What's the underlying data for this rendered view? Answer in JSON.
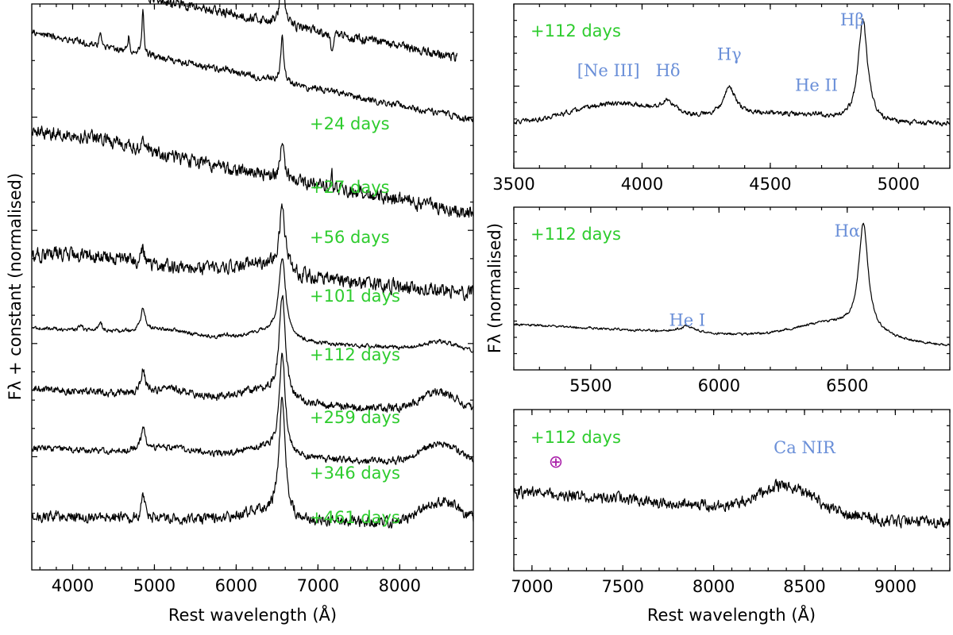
{
  "colors": {
    "epoch": "#2ecc2e",
    "line_id": "#6a8fd8",
    "telluric": "#aa22aa",
    "spectrum": "#000000"
  },
  "chart_data": [
    {
      "id": "left",
      "type": "line",
      "title": "",
      "xlabel": "Rest wavelength (Å)",
      "ylabel": "Fλ + constant (normalised)",
      "xlim": [
        3500,
        8900
      ],
      "ylim": [
        0,
        10
      ],
      "xticks": [
        4000,
        5000,
        6000,
        7000,
        8000
      ],
      "xtick_labels": [
        "4000",
        "5000",
        "6000",
        "7000",
        "8000"
      ],
      "grid": false,
      "series": [
        {
          "name": "+24 days",
          "label": "+24 days",
          "x_end": 8700,
          "offset": 9.6,
          "cont_start": 0.9,
          "cont_end": -0.6,
          "noise": 0.07,
          "lines": [
            [
              4340,
              0.1,
              30
            ],
            [
              4686,
              0.12,
              20
            ],
            [
              4861,
              0.28,
              20
            ],
            [
              6563,
              1.05,
              25
            ],
            [
              7170,
              -0.3,
              15
            ]
          ],
          "bumps": []
        },
        {
          "name": "+27 days",
          "label": "+27 days",
          "x_end": 8900,
          "offset": 8.85,
          "cont_start": 0.65,
          "cont_end": -0.9,
          "noise": 0.05,
          "lines": [
            [
              4340,
              0.26,
              15
            ],
            [
              4686,
              0.3,
              12
            ],
            [
              4861,
              0.8,
              14
            ],
            [
              5876,
              0.05,
              20
            ],
            [
              6563,
              0.85,
              22
            ]
          ],
          "bumps": []
        },
        {
          "name": "+56 days",
          "label": "+56 days",
          "x_end": 8900,
          "offset": 7.5,
          "cont_start": 0.25,
          "cont_end": -1.2,
          "noise": 0.1,
          "lines": [
            [
              4861,
              0.25,
              25
            ],
            [
              6563,
              0.65,
              25
            ],
            [
              7170,
              0.4,
              6
            ]
          ],
          "bumps": [
            [
              4300,
              0.1,
              400
            ]
          ]
        },
        {
          "name": "+101 days",
          "label": "+101 days",
          "x_end": 8900,
          "offset": 5.45,
          "cont_start": 0.1,
          "cont_end": -0.55,
          "noise": 0.1,
          "lines": [
            [
              4861,
              0.25,
              30
            ],
            [
              6563,
              1.05,
              45
            ]
          ],
          "bumps": [
            [
              6300,
              0.2,
              300
            ],
            [
              4200,
              0.1,
              400
            ]
          ]
        },
        {
          "name": "+112 days",
          "label": "+112 days",
          "x_end": 8900,
          "offset": 4.2,
          "cont_start": 0.08,
          "cont_end": -0.35,
          "noise": 0.03,
          "lines": [
            [
              4861,
              0.4,
              30
            ],
            [
              4340,
              0.15,
              30
            ],
            [
              4101,
              0.08,
              30
            ],
            [
              5876,
              0.06,
              40
            ],
            [
              6563,
              1.35,
              50
            ]
          ],
          "bumps": [
            [
              6400,
              0.15,
              250
            ],
            [
              8500,
              0.15,
              200
            ],
            [
              5100,
              0.1,
              300
            ]
          ]
        },
        {
          "name": "+259 days",
          "label": "+259 days",
          "x_end": 8900,
          "offset": 3.25,
          "cont_start": -0.05,
          "cont_end": -0.5,
          "noise": 0.06,
          "lines": [
            [
              4861,
              0.38,
              30
            ],
            [
              6563,
              1.8,
              45
            ]
          ],
          "bumps": [
            [
              8500,
              0.35,
              250
            ],
            [
              6300,
              0.2,
              250
            ],
            [
              5200,
              0.12,
              300
            ]
          ]
        },
        {
          "name": "+346 days",
          "label": "+346 days",
          "x_end": 8900,
          "offset": 2.2,
          "cont_start": -0.05,
          "cont_end": -0.35,
          "noise": 0.05,
          "lines": [
            [
              4861,
              0.4,
              30
            ],
            [
              6563,
              1.75,
              45
            ]
          ],
          "bumps": [
            [
              8500,
              0.35,
              250
            ],
            [
              6300,
              0.15,
              250
            ],
            [
              5200,
              0.1,
              300
            ]
          ]
        },
        {
          "name": "+461 days",
          "label": "+461 days",
          "x_end": 8900,
          "offset": 1.0,
          "cont_start": -0.05,
          "cont_end": -0.2,
          "noise": 0.08,
          "lines": [
            [
              4861,
              0.35,
              30
            ],
            [
              6563,
              2.1,
              45
            ]
          ],
          "bumps": [
            [
              8500,
              0.4,
              250
            ],
            [
              6300,
              0.15,
              250
            ]
          ]
        }
      ],
      "annotations": []
    },
    {
      "id": "top-right",
      "type": "line",
      "title": "",
      "xlabel": "",
      "ylabel": "",
      "xlim": [
        3500,
        5200
      ],
      "ylim": [
        0,
        1
      ],
      "xticks": [
        3500,
        4000,
        4500,
        5000
      ],
      "xtick_labels": [
        "3500",
        "4000",
        "4500",
        "5000"
      ],
      "grid": false,
      "series": [
        {
          "name": "+112 days",
          "label": "+112 days",
          "x_end": 5200,
          "offset": 0.27,
          "cont_start": 0,
          "cont_end": 0,
          "noise": 0.012,
          "lines": [
            [
              4861,
              0.62,
              22
            ],
            [
              4340,
              0.17,
              30
            ],
            [
              4101,
              0.07,
              30
            ],
            [
              4686,
              0.02,
              15
            ]
          ],
          "bumps": [
            [
              3900,
              0.12,
              180
            ],
            [
              4500,
              0.06,
              200
            ]
          ]
        }
      ],
      "annotations": [
        {
          "text": "[Ne III]",
          "x": 3869,
          "y": 0.56
        },
        {
          "text": "Hδ",
          "x": 4101,
          "y": 0.56
        },
        {
          "text": "Hγ",
          "x": 4340,
          "y": 0.66
        },
        {
          "text": "He II",
          "x": 4680,
          "y": 0.47
        },
        {
          "text": "Hβ",
          "x": 4820,
          "y": 0.87
        }
      ]
    },
    {
      "id": "mid-right",
      "type": "line",
      "title": "",
      "xlabel": "",
      "ylabel": "Fλ (normalised)",
      "xlim": [
        5200,
        6900
      ],
      "ylim": [
        0,
        1
      ],
      "xticks": [
        5500,
        6000,
        6500
      ],
      "xtick_labels": [
        "5500",
        "6000",
        "6500"
      ],
      "grid": false,
      "series": [
        {
          "name": "+112 days",
          "label": "+112 days",
          "x_end": 6900,
          "offset": 0.2,
          "cont_start": 0.08,
          "cont_end": -0.05,
          "noise": 0.006,
          "lines": [
            [
              6563,
              0.65,
              22
            ],
            [
              5876,
              0.04,
              35
            ]
          ],
          "bumps": [
            [
              6450,
              0.1,
              150
            ]
          ]
        }
      ],
      "annotations": [
        {
          "text": "He I",
          "x": 5876,
          "y": 0.27
        },
        {
          "text": "Hα",
          "x": 6500,
          "y": 0.82
        }
      ]
    },
    {
      "id": "bottom-right",
      "type": "line",
      "title": "",
      "xlabel": "Rest wavelength (Å)",
      "ylabel": "",
      "xlim": [
        6900,
        9300
      ],
      "ylim": [
        0,
        1
      ],
      "xticks": [
        7000,
        7500,
        8000,
        8500,
        9000
      ],
      "xtick_labels": [
        "7000",
        "7500",
        "8000",
        "8500",
        "9000"
      ],
      "grid": false,
      "series": [
        {
          "name": "+112 days",
          "label": "+112 days",
          "x_end": 9300,
          "offset": 0.43,
          "cont_start": 0.06,
          "cont_end": -0.14,
          "noise": 0.03,
          "lines": [],
          "bumps": [
            [
              8400,
              0.16,
              150
            ]
          ]
        }
      ],
      "annotations": [
        {
          "text": "Ca NIR",
          "x": 8500,
          "y": 0.73
        }
      ],
      "telluric_symbol": "⊕"
    }
  ]
}
